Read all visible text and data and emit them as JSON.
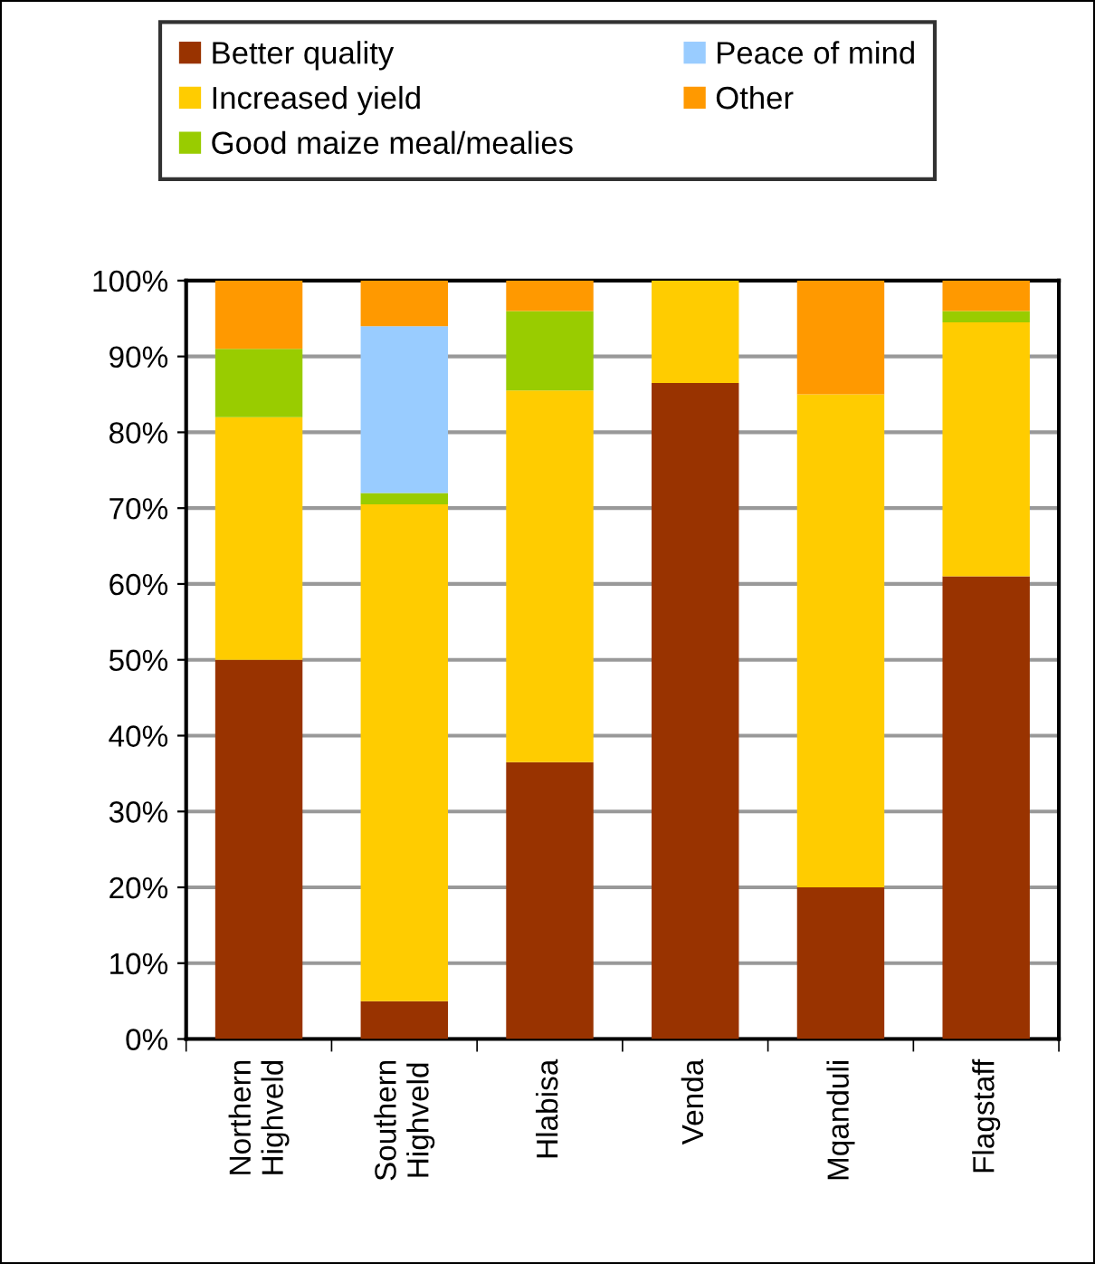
{
  "chart_data": {
    "type": "bar",
    "stacked": true,
    "categories": [
      "Northern\nHighveld",
      "Southern\nHighveld",
      "Hlabisa",
      "Venda",
      "Mqanduli",
      "Flagstaff"
    ],
    "series": [
      {
        "name": "Better quality",
        "color": "#993300",
        "values": [
          50,
          5,
          36.5,
          86.5,
          20,
          61
        ]
      },
      {
        "name": "Increased yield",
        "color": "#ffcc00",
        "values": [
          32,
          65.5,
          49,
          13.5,
          65,
          33.5
        ]
      },
      {
        "name": "Good maize meal/mealies",
        "color": "#99cc00",
        "values": [
          9,
          1.5,
          10.5,
          0,
          0,
          1.5
        ]
      },
      {
        "name": "Peace of mind",
        "color": "#99ccff",
        "values": [
          0,
          22,
          0,
          0,
          0,
          0
        ]
      },
      {
        "name": "Other",
        "color": "#ff9900",
        "values": [
          9,
          6,
          4,
          0,
          15,
          4
        ]
      }
    ],
    "ylim": [
      0,
      100
    ],
    "yticks": [
      {
        "value": 0,
        "label": "0%"
      },
      {
        "value": 10,
        "label": "10%"
      },
      {
        "value": 20,
        "label": "20%"
      },
      {
        "value": 30,
        "label": "30%"
      },
      {
        "value": 40,
        "label": "40%"
      },
      {
        "value": 50,
        "label": "50%"
      },
      {
        "value": 60,
        "label": "60%"
      },
      {
        "value": 70,
        "label": "70%"
      },
      {
        "value": 80,
        "label": "80%"
      },
      {
        "value": 90,
        "label": "90%"
      },
      {
        "value": 100,
        "label": "100%"
      }
    ],
    "grid": "y",
    "legend": "top"
  }
}
